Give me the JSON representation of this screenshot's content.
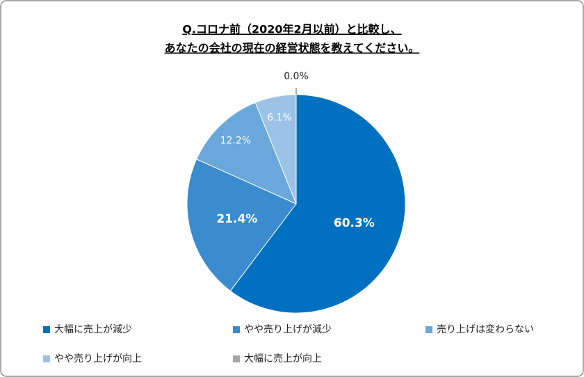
{
  "chart_data": {
    "type": "pie",
    "title": [
      "Q.コロナ前（2020年2月以前）と比較し、",
      "あなたの会社の現在の経営状態を教えてください。"
    ],
    "categories": [
      "大幅に売上が減少",
      "やや売り上げが減少",
      "売り上げは変わらない",
      "やや売り上げが向上",
      "大幅に売上が向上"
    ],
    "values": [
      60.3,
      21.4,
      12.2,
      6.1,
      0.0
    ],
    "value_labels": [
      "60.3%",
      "21.4%",
      "12.2%",
      "6.1%",
      "0.0%"
    ],
    "colors": [
      "#0070c0",
      "#3a8ccf",
      "#6aa7da",
      "#9cc3e6",
      "#a6a6a6"
    ]
  }
}
